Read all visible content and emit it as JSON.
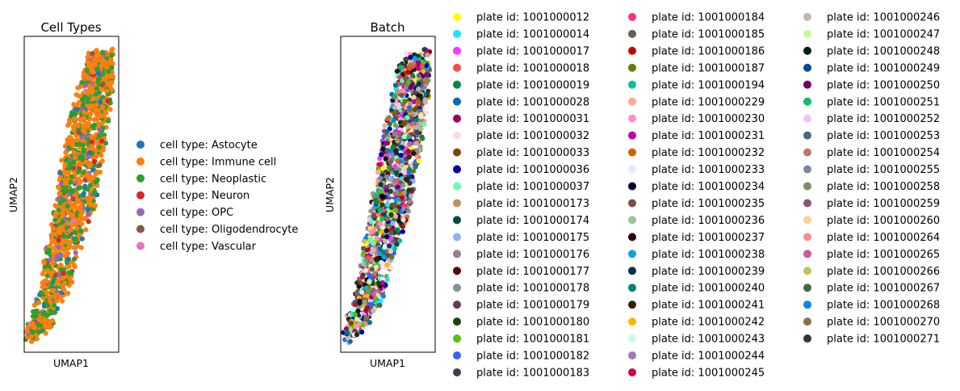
{
  "chart_data": [
    {
      "type": "scatter",
      "title": "Cell Types",
      "xlabel": "UMAP1",
      "ylabel": "UMAP2",
      "grid": false,
      "legend_placement": "right",
      "legend": [
        {
          "label": "cell type: Astocyte",
          "color": "#1f77b4",
          "share": 0.05
        },
        {
          "label": "cell type: Immune cell",
          "color": "#ff7f0e",
          "share": 0.6
        },
        {
          "label": "cell type: Neoplastic",
          "color": "#2ca02c",
          "share": 0.25
        },
        {
          "label": "cell type: Neuron",
          "color": "#d62728",
          "share": 0.01
        },
        {
          "label": "cell type: OPC",
          "color": "#9467bd",
          "share": 0.06
        },
        {
          "label": "cell type: Oligodendrocyte",
          "color": "#8c564b",
          "share": 0.02
        },
        {
          "label": "cell type: Vascular",
          "color": "#e377c2",
          "share": 0.01
        }
      ]
    },
    {
      "type": "scatter",
      "title": "Batch",
      "xlabel": "UMAP1",
      "ylabel": "UMAP2",
      "grid": false,
      "legend_placement": "right",
      "legend": [
        {
          "label": "plate id: 1001000012",
          "color": "#ffff00"
        },
        {
          "label": "plate id: 1001000014",
          "color": "#1ce6ff"
        },
        {
          "label": "plate id: 1001000017",
          "color": "#ff34ff"
        },
        {
          "label": "plate id: 1001000018",
          "color": "#ff4a46"
        },
        {
          "label": "plate id: 1001000019",
          "color": "#008941"
        },
        {
          "label": "plate id: 1001000028",
          "color": "#006fa6"
        },
        {
          "label": "plate id: 1001000031",
          "color": "#a30059"
        },
        {
          "label": "plate id: 1001000032",
          "color": "#ffdbe5"
        },
        {
          "label": "plate id: 1001000033",
          "color": "#7a4900"
        },
        {
          "label": "plate id: 1001000036",
          "color": "#0000a6"
        },
        {
          "label": "plate id: 1001000037",
          "color": "#63ffac"
        },
        {
          "label": "plate id: 1001000173",
          "color": "#b79762"
        },
        {
          "label": "plate id: 1001000174",
          "color": "#004d43"
        },
        {
          "label": "plate id: 1001000175",
          "color": "#8fb0ff"
        },
        {
          "label": "plate id: 1001000176",
          "color": "#997d87"
        },
        {
          "label": "plate id: 1001000177",
          "color": "#5a0007"
        },
        {
          "label": "plate id: 1001000178",
          "color": "#809693"
        },
        {
          "label": "plate id: 1001000179",
          "color": "#6a3a4c"
        },
        {
          "label": "plate id: 1001000180",
          "color": "#1b4400"
        },
        {
          "label": "plate id: 1001000181",
          "color": "#4fc601"
        },
        {
          "label": "plate id: 1001000182",
          "color": "#3b5dff"
        },
        {
          "label": "plate id: 1001000183",
          "color": "#4a3b53"
        },
        {
          "label": "plate id: 1001000184",
          "color": "#ff2f80"
        },
        {
          "label": "plate id: 1001000185",
          "color": "#61615a"
        },
        {
          "label": "plate id: 1001000186",
          "color": "#ba0900"
        },
        {
          "label": "plate id: 1001000187",
          "color": "#6b7900"
        },
        {
          "label": "plate id: 1001000194",
          "color": "#00c2a0"
        },
        {
          "label": "plate id: 1001000229",
          "color": "#ffaa92"
        },
        {
          "label": "plate id: 1001000230",
          "color": "#ff90c9"
        },
        {
          "label": "plate id: 1001000231",
          "color": "#b903aa"
        },
        {
          "label": "plate id: 1001000232",
          "color": "#d16100"
        },
        {
          "label": "plate id: 1001000233",
          "color": "#ddefff"
        },
        {
          "label": "plate id: 1001000234",
          "color": "#000035"
        },
        {
          "label": "plate id: 1001000235",
          "color": "#7b4f4b"
        },
        {
          "label": "plate id: 1001000236",
          "color": "#a1c299"
        },
        {
          "label": "plate id: 1001000237",
          "color": "#300018"
        },
        {
          "label": "plate id: 1001000238",
          "color": "#0aa6d8"
        },
        {
          "label": "plate id: 1001000239",
          "color": "#013349"
        },
        {
          "label": "plate id: 1001000240",
          "color": "#00846f"
        },
        {
          "label": "plate id: 1001000241",
          "color": "#372101"
        },
        {
          "label": "plate id: 1001000242",
          "color": "#ffb500"
        },
        {
          "label": "plate id: 1001000243",
          "color": "#c2ffed"
        },
        {
          "label": "plate id: 1001000244",
          "color": "#a079bf"
        },
        {
          "label": "plate id: 1001000245",
          "color": "#cc0744"
        },
        {
          "label": "plate id: 1001000246",
          "color": "#c0b9b2"
        },
        {
          "label": "plate id: 1001000247",
          "color": "#c2ff99"
        },
        {
          "label": "plate id: 1001000248",
          "color": "#001e09"
        },
        {
          "label": "plate id: 1001000249",
          "color": "#00489c"
        },
        {
          "label": "plate id: 1001000250",
          "color": "#6f0062"
        },
        {
          "label": "plate id: 1001000251",
          "color": "#0cbd66"
        },
        {
          "label": "plate id: 1001000252",
          "color": "#eec3ff"
        },
        {
          "label": "plate id: 1001000253",
          "color": "#456d75"
        },
        {
          "label": "plate id: 1001000254",
          "color": "#b77b68"
        },
        {
          "label": "plate id: 1001000255",
          "color": "#7a87a1"
        },
        {
          "label": "plate id: 1001000258",
          "color": "#788d66"
        },
        {
          "label": "plate id: 1001000259",
          "color": "#885578"
        },
        {
          "label": "plate id: 1001000260",
          "color": "#fad09f"
        },
        {
          "label": "plate id: 1001000264",
          "color": "#ff8a9a"
        },
        {
          "label": "plate id: 1001000265",
          "color": "#d157a0"
        },
        {
          "label": "plate id: 1001000266",
          "color": "#bec459"
        },
        {
          "label": "plate id: 1001000267",
          "color": "#456648"
        },
        {
          "label": "plate id: 1001000268",
          "color": "#0086ed"
        },
        {
          "label": "plate id: 1001000270",
          "color": "#886f4c"
        },
        {
          "label": "plate id: 1001000271",
          "color": "#34362d"
        }
      ]
    }
  ]
}
